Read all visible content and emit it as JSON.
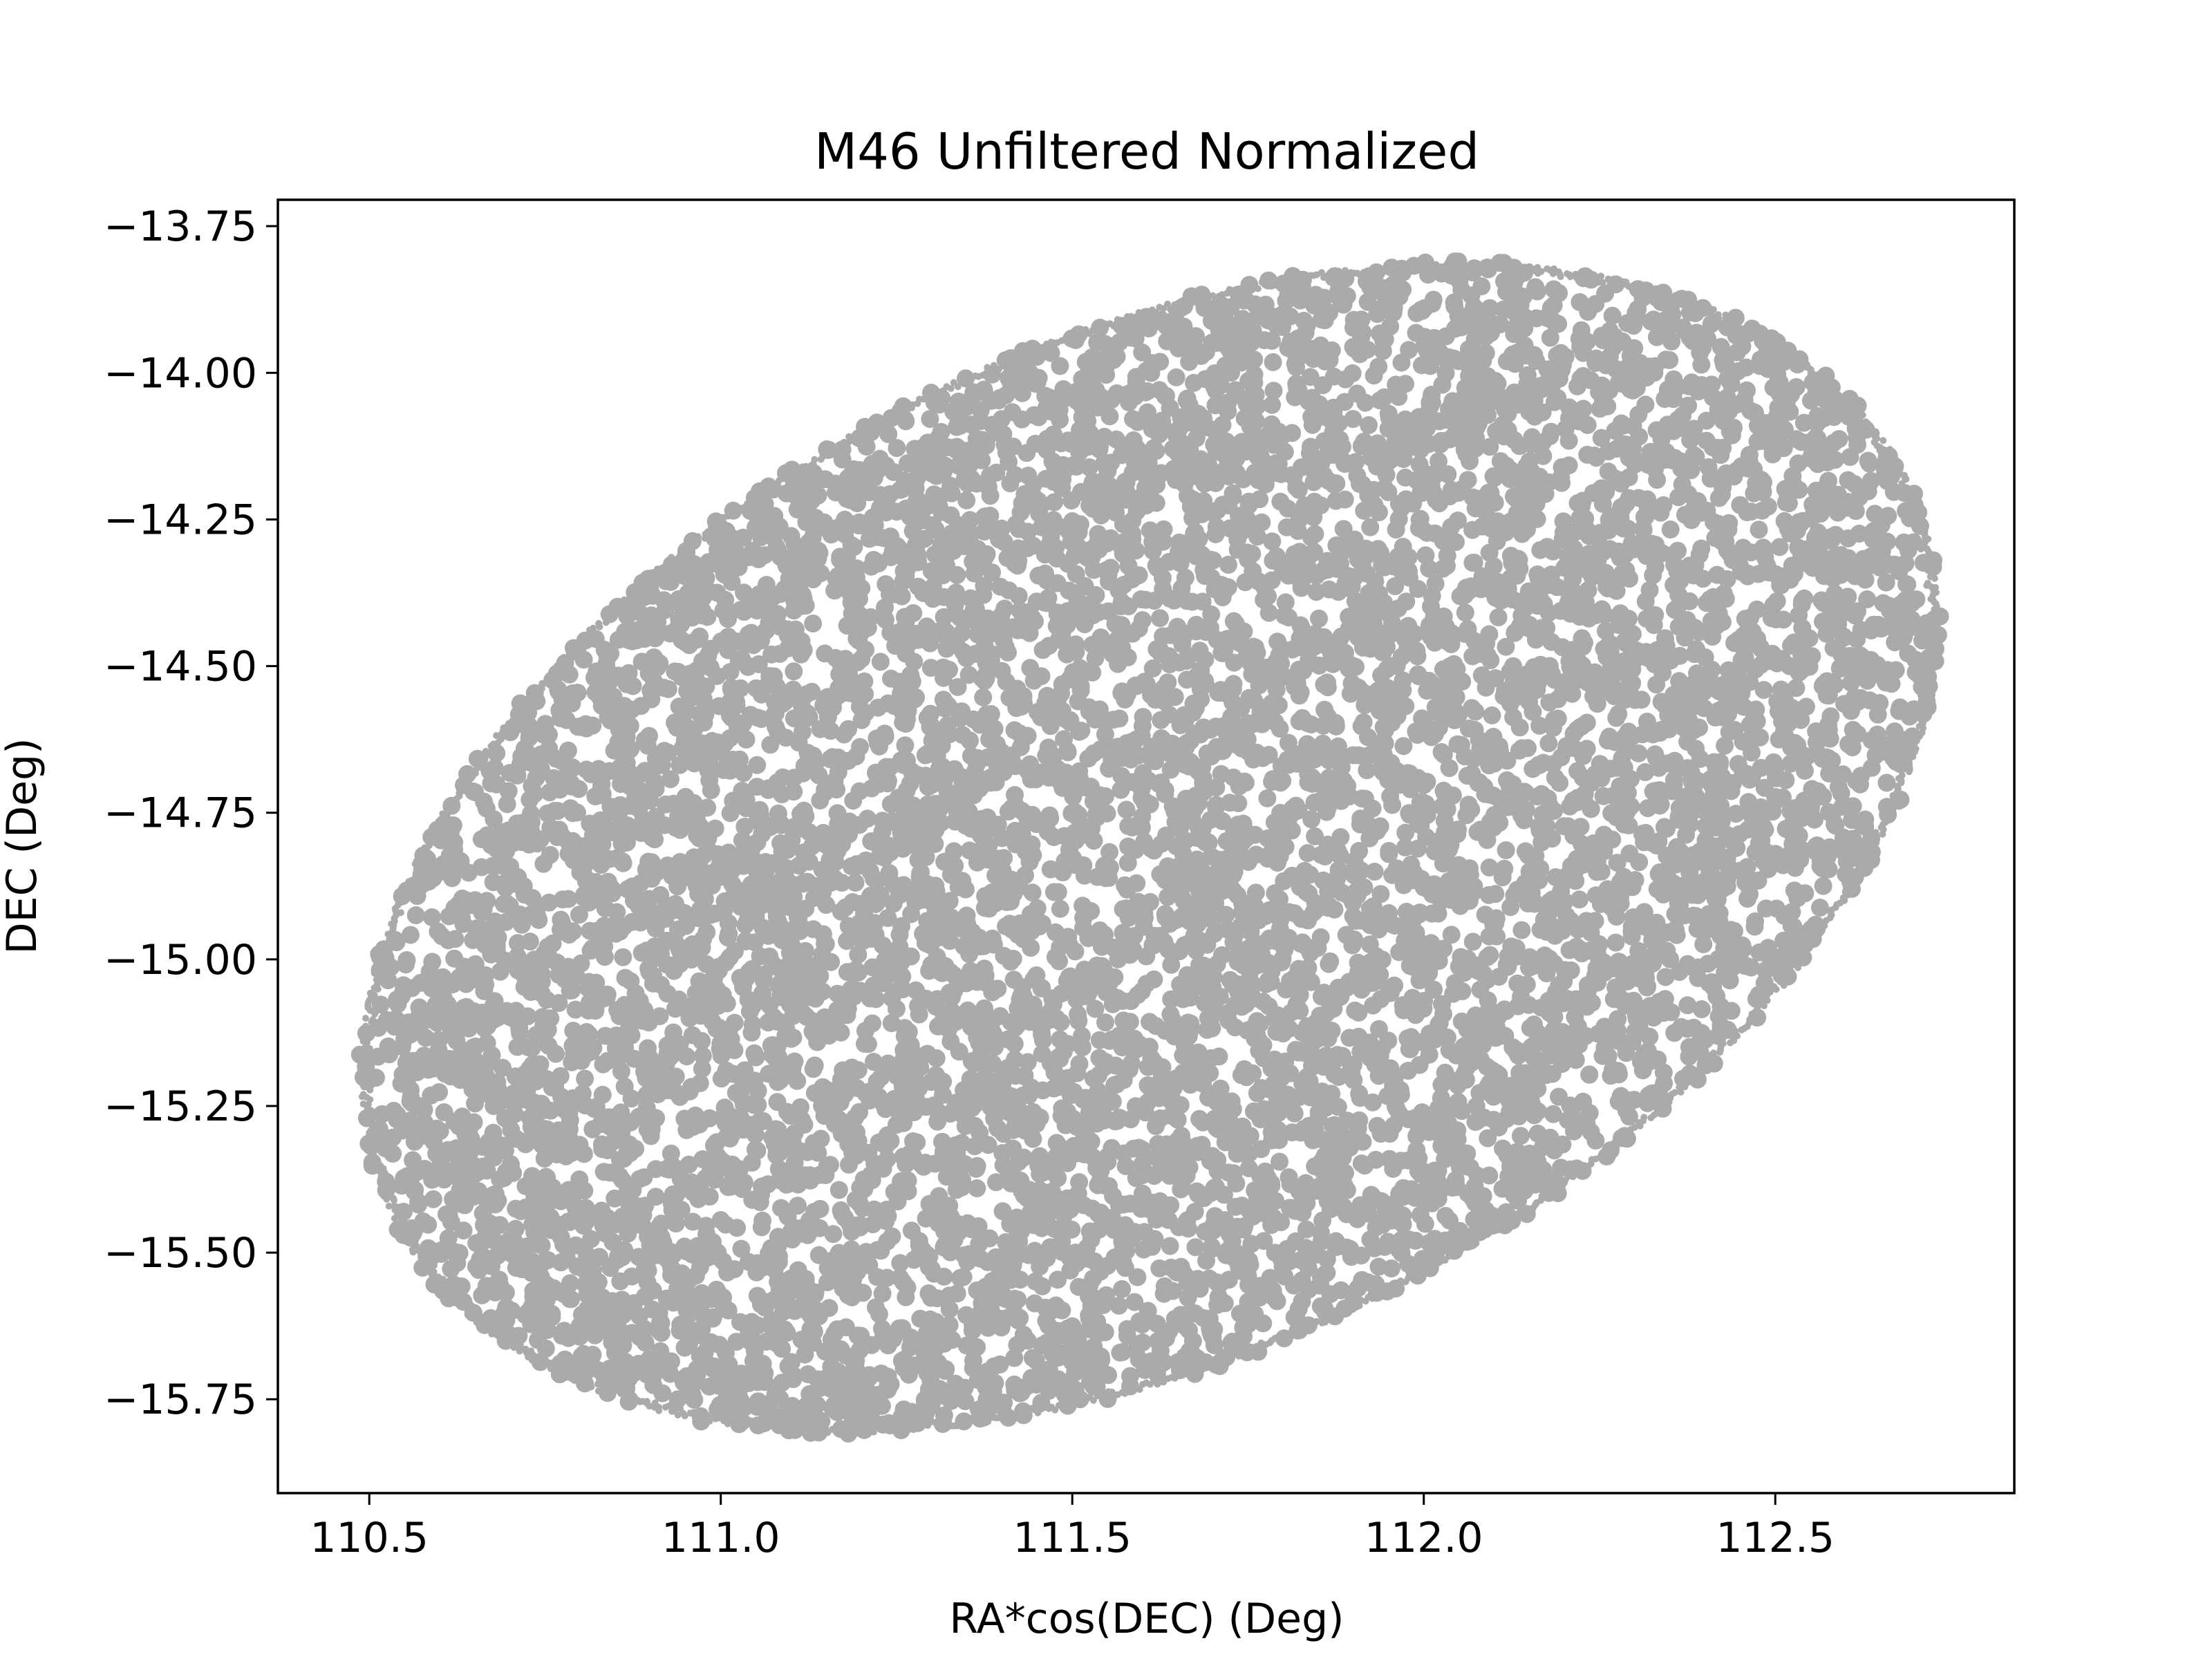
{
  "chart_data": {
    "type": "scatter",
    "title": "M46 Unfiltered Normalized",
    "xlabel": "RA*cos(DEC) (Deg)",
    "ylabel": "DEC (Deg)",
    "xlim": [
      110.37,
      112.84
    ],
    "ylim": [
      -15.91,
      -13.705
    ],
    "xticks": [
      110.5,
      111.0,
      111.5,
      112.0,
      112.5
    ],
    "xtick_labels": [
      "110.5",
      "111.0",
      "111.5",
      "112.0",
      "112.5"
    ],
    "yticks": [
      -13.75,
      -14.0,
      -14.25,
      -14.5,
      -14.75,
      -15.0,
      -15.25,
      -15.5,
      -15.75
    ],
    "ytick_labels": [
      "−13.75",
      "−14.00",
      "−14.25",
      "−14.50",
      "−14.75",
      "−15.00",
      "−15.25",
      "−15.50",
      "−15.75"
    ],
    "grid": false,
    "legend": "none",
    "series": [
      {
        "marker_color": "#aaaaaa",
        "distribution": {
          "shape": "filled-ellipse",
          "center": [
            111.61,
            -14.81
          ],
          "semi_major": 1.26,
          "semi_minor": 0.82,
          "rotation_deg": 26,
          "x_range": [
            110.49,
            112.74
          ],
          "y_range": [
            -15.81,
            -13.81
          ]
        }
      }
    ]
  }
}
